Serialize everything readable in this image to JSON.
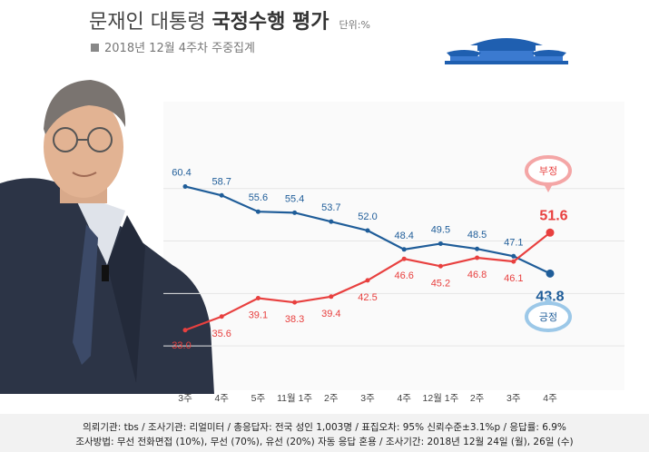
{
  "header": {
    "title_prefix": "문재인 대통령",
    "title_bold": "국정수행 평가",
    "unit": "단위:%",
    "subtitle": "2018년 12월 4주차 주중집계"
  },
  "footer": {
    "line1": "의뢰기관: tbs / 조사기관: 리얼미터 / 총응답자: 전국 성인 1,003명 / 표집오차: 95% 신뢰수준±3.1%p / 응답률: 6.9%",
    "line2": "조사방법: 무선 전화면접 (10%), 무선 (70%), 유선 (20%) 자동 응답 혼용 / 조사기간: 2018년 12월 24일 (월), 26일 (수)"
  },
  "colors": {
    "positive": "#1f5d99",
    "negative": "#e8403f",
    "positive_light": "#9cc8e8",
    "negative_light": "#f4a6a6"
  },
  "chart_data": {
    "type": "line",
    "categories": [
      "3주",
      "4주",
      "5주",
      "11월 1주",
      "2주",
      "3주",
      "4주",
      "12월 1주",
      "2주",
      "3주",
      "4주"
    ],
    "series": [
      {
        "name": "긍정",
        "values": [
          60.4,
          58.7,
          55.6,
          55.4,
          53.7,
          52.0,
          48.4,
          49.5,
          48.5,
          47.1,
          43.8
        ],
        "color": "#1f5d99"
      },
      {
        "name": "부정",
        "values": [
          33.0,
          35.6,
          39.1,
          38.3,
          39.4,
          42.5,
          46.6,
          45.2,
          46.8,
          46.1,
          51.6
        ],
        "color": "#e8403f"
      }
    ],
    "labels": [
      [
        "60.4",
        "58.7",
        "55.6",
        "55.4",
        "53.7",
        "52.0",
        "48.4",
        "49.5",
        "48.5",
        "47.1",
        "43.8"
      ],
      [
        "33.0",
        "35.6",
        "39.1",
        "38.3",
        "39.4",
        "42.5",
        "46.6",
        "45.2",
        "46.8",
        "46.1",
        "51.6"
      ]
    ],
    "ylim": [
      25,
      70
    ],
    "grid": true,
    "legend": "right",
    "title": "문재인 대통령 국정수행 평가"
  }
}
